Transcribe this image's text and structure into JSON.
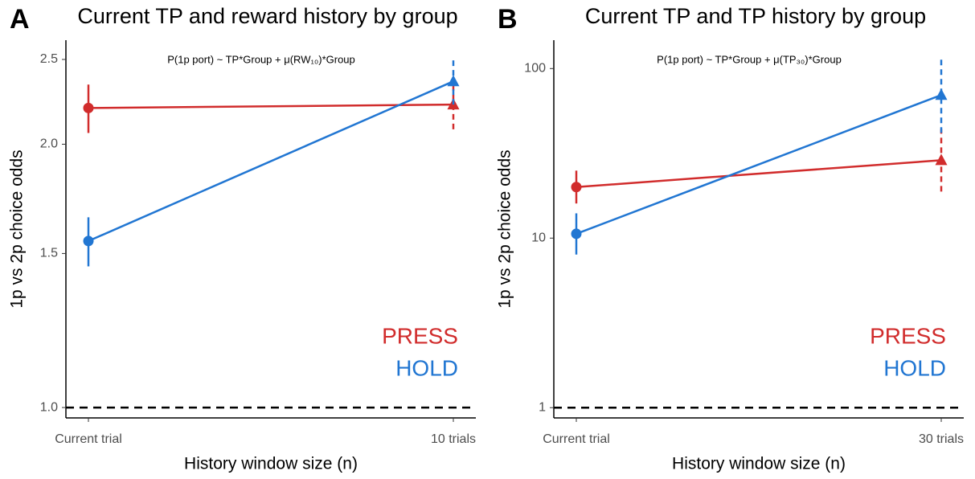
{
  "chart_data": [
    {
      "type": "line",
      "panel_label": "A",
      "title": "Current TP and reward history by group",
      "annotation": "P(1p port) ~ TP*Group + μ(RW₁₀)*Group",
      "x_label": "History window size (n)",
      "y_label": "1p vs 2p choice odds",
      "categories": [
        "Current trial",
        "10 trials"
      ],
      "series": [
        {
          "name": "PRESS",
          "color": "#d12c2c",
          "values": [
            2.2,
            2.22
          ],
          "lower": [
            2.06,
            2.08
          ],
          "upper": [
            2.34,
            2.34
          ]
        },
        {
          "name": "HOLD",
          "color": "#2176d2",
          "values": [
            1.55,
            2.36
          ],
          "lower": [
            1.45,
            2.22
          ],
          "upper": [
            1.65,
            2.52
          ]
        }
      ],
      "log_y": true,
      "ylim": [
        0.973,
        2.63
      ],
      "yticks": [
        {
          "value": 1,
          "label": "1.0"
        },
        1.5,
        {
          "value": 2,
          "label": "2.0"
        },
        2.5
      ],
      "reference_line": 1,
      "legend": "lower right"
    },
    {
      "type": "line",
      "panel_label": "B",
      "title": "Current TP and TP history by group",
      "annotation": "P(1p port) ~ TP*Group + μ(TP₃₀)*Group",
      "x_label": "History window size (n)",
      "y_label": "1p vs 2p choice odds",
      "categories": [
        "Current trial",
        "30 trials"
      ],
      "series": [
        {
          "name": "PRESS",
          "color": "#d12c2c",
          "values": [
            20,
            28.8
          ],
          "lower": [
            16,
            18.8
          ],
          "upper": [
            25,
            44
          ]
        },
        {
          "name": "HOLD",
          "color": "#2176d2",
          "values": [
            10.6,
            69.8
          ],
          "lower": [
            8,
            41.8
          ],
          "upper": [
            14,
            118
          ]
        }
      ],
      "log_y": true,
      "ylim": [
        0.87,
        147
      ],
      "yticks": [
        1,
        10,
        100
      ],
      "reference_line": 1,
      "legend": "lower right"
    }
  ]
}
